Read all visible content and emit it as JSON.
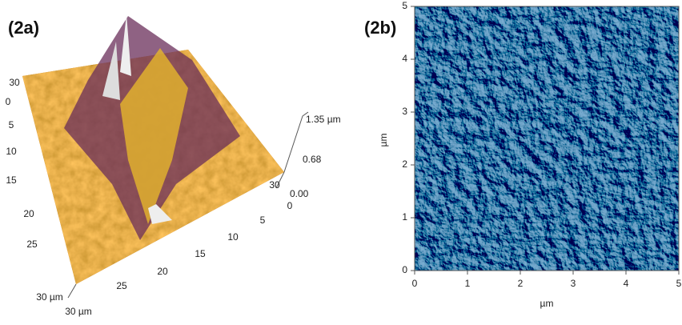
{
  "panels": [
    {
      "label": "(2a)",
      "z_axis": {
        "ticks": [
          "1.35 µm",
          "0.68",
          "0.00"
        ]
      },
      "left_axis": {
        "ticks": [
          "30",
          "0",
          "5",
          "10",
          "15",
          "20",
          "25",
          "30 µm"
        ]
      },
      "bottom_axis": {
        "ticks": [
          "30",
          "0",
          "5",
          "10",
          "15",
          "20",
          "25",
          "30 µm"
        ]
      }
    },
    {
      "label": "(2b)",
      "x_axis": {
        "label": "µm",
        "ticks": [
          "0",
          "1",
          "2",
          "3",
          "4",
          "5"
        ]
      },
      "y_axis": {
        "label": "µm",
        "ticks": [
          "0",
          "1",
          "2",
          "3",
          "4",
          "5"
        ]
      }
    }
  ]
}
